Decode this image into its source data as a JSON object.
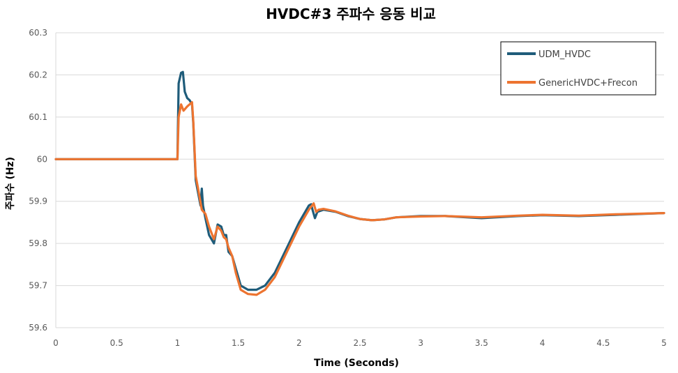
{
  "chart_data": {
    "type": "line",
    "title": "HVDC#3 주파수 응동 비교",
    "xlabel": "Time (Seconds)",
    "ylabel": "주파수 (Hz)",
    "xlim": [
      0,
      5
    ],
    "ylim": [
      59.6,
      60.3
    ],
    "x_ticks": [
      "0",
      "0.5",
      "1",
      "1.5",
      "2",
      "2.5",
      "3",
      "3.5",
      "4",
      "4.5",
      "5"
    ],
    "y_ticks": [
      "60.3",
      "60.2",
      "60.1",
      "60",
      "59.9",
      "59.8",
      "59.7",
      "59.6"
    ],
    "grid": true,
    "legend_position": "top-right",
    "series": [
      {
        "name": "UDM_HVDC",
        "color": "#1f5c7a",
        "points": [
          [
            0,
            60.0
          ],
          [
            1.0,
            60.0
          ],
          [
            1.01,
            60.18
          ],
          [
            1.03,
            60.205
          ],
          [
            1.045,
            60.207
          ],
          [
            1.06,
            60.16
          ],
          [
            1.08,
            60.145
          ],
          [
            1.1,
            60.14
          ],
          [
            1.12,
            60.13
          ],
          [
            1.13,
            60.085
          ],
          [
            1.15,
            59.95
          ],
          [
            1.17,
            59.92
          ],
          [
            1.19,
            59.89
          ],
          [
            1.2,
            59.93
          ],
          [
            1.21,
            59.89
          ],
          [
            1.23,
            59.86
          ],
          [
            1.26,
            59.82
          ],
          [
            1.3,
            59.8
          ],
          [
            1.33,
            59.845
          ],
          [
            1.36,
            59.84
          ],
          [
            1.38,
            59.82
          ],
          [
            1.4,
            59.82
          ],
          [
            1.42,
            59.78
          ],
          [
            1.45,
            59.77
          ],
          [
            1.48,
            59.74
          ],
          [
            1.52,
            59.7
          ],
          [
            1.58,
            59.69
          ],
          [
            1.65,
            59.69
          ],
          [
            1.72,
            59.7
          ],
          [
            1.8,
            59.73
          ],
          [
            1.9,
            59.79
          ],
          [
            2.0,
            59.85
          ],
          [
            2.08,
            59.89
          ],
          [
            2.1,
            59.893
          ],
          [
            2.11,
            59.88
          ],
          [
            2.13,
            59.86
          ],
          [
            2.15,
            59.875
          ],
          [
            2.2,
            59.88
          ],
          [
            2.3,
            59.875
          ],
          [
            2.4,
            59.865
          ],
          [
            2.5,
            59.858
          ],
          [
            2.6,
            59.855
          ],
          [
            2.7,
            59.857
          ],
          [
            2.8,
            59.862
          ],
          [
            3.0,
            59.865
          ],
          [
            3.2,
            59.865
          ],
          [
            3.5,
            59.86
          ],
          [
            3.8,
            59.865
          ],
          [
            4.0,
            59.867
          ],
          [
            4.3,
            59.865
          ],
          [
            4.6,
            59.868
          ],
          [
            5.0,
            59.872
          ]
        ]
      },
      {
        "name": "GenericHVDC+Frecon",
        "color": "#ed7430",
        "points": [
          [
            0,
            60.0
          ],
          [
            1.0,
            60.0
          ],
          [
            1.01,
            60.1
          ],
          [
            1.03,
            60.13
          ],
          [
            1.05,
            60.115
          ],
          [
            1.08,
            60.125
          ],
          [
            1.1,
            60.13
          ],
          [
            1.12,
            60.135
          ],
          [
            1.13,
            60.09
          ],
          [
            1.15,
            59.96
          ],
          [
            1.17,
            59.93
          ],
          [
            1.2,
            59.88
          ],
          [
            1.23,
            59.87
          ],
          [
            1.26,
            59.84
          ],
          [
            1.3,
            59.81
          ],
          [
            1.33,
            59.84
          ],
          [
            1.36,
            59.83
          ],
          [
            1.38,
            59.815
          ],
          [
            1.4,
            59.81
          ],
          [
            1.42,
            59.79
          ],
          [
            1.45,
            59.77
          ],
          [
            1.48,
            59.73
          ],
          [
            1.52,
            59.69
          ],
          [
            1.58,
            59.68
          ],
          [
            1.65,
            59.678
          ],
          [
            1.72,
            59.69
          ],
          [
            1.8,
            59.72
          ],
          [
            1.9,
            59.78
          ],
          [
            2.0,
            59.84
          ],
          [
            2.08,
            59.88
          ],
          [
            2.12,
            59.895
          ],
          [
            2.14,
            59.875
          ],
          [
            2.16,
            59.88
          ],
          [
            2.2,
            59.882
          ],
          [
            2.3,
            59.876
          ],
          [
            2.4,
            59.866
          ],
          [
            2.5,
            59.858
          ],
          [
            2.6,
            59.855
          ],
          [
            2.7,
            59.857
          ],
          [
            2.8,
            59.862
          ],
          [
            3.0,
            59.864
          ],
          [
            3.2,
            59.865
          ],
          [
            3.5,
            59.862
          ],
          [
            3.8,
            59.866
          ],
          [
            4.0,
            59.868
          ],
          [
            4.3,
            59.866
          ],
          [
            4.6,
            59.869
          ],
          [
            5.0,
            59.872
          ]
        ]
      }
    ]
  }
}
